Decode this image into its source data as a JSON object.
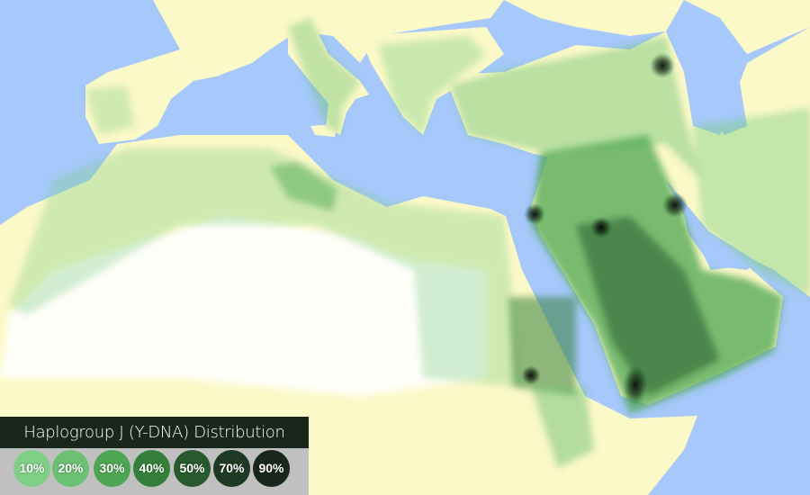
{
  "map": {
    "colors": {
      "sea": "#a6c8fa",
      "land": "#fbf9c8",
      "desert": "#ffffff"
    },
    "hotspots": [
      "Caucasus",
      "Levant",
      "Mesopotamia",
      "Central Arabia",
      "Sudan",
      "Yemen"
    ]
  },
  "legend": {
    "title": "Haplogroup J (Y-DNA) Distribution",
    "items": [
      {
        "label": "10%",
        "color": "#7fcf86"
      },
      {
        "label": "20%",
        "color": "#6cc074"
      },
      {
        "label": "30%",
        "color": "#4ea653"
      },
      {
        "label": "40%",
        "color": "#347f39"
      },
      {
        "label": "50%",
        "color": "#285a2d"
      },
      {
        "label": "70%",
        "color": "#1f3a24"
      },
      {
        "label": "90%",
        "color": "#19261c"
      }
    ]
  }
}
